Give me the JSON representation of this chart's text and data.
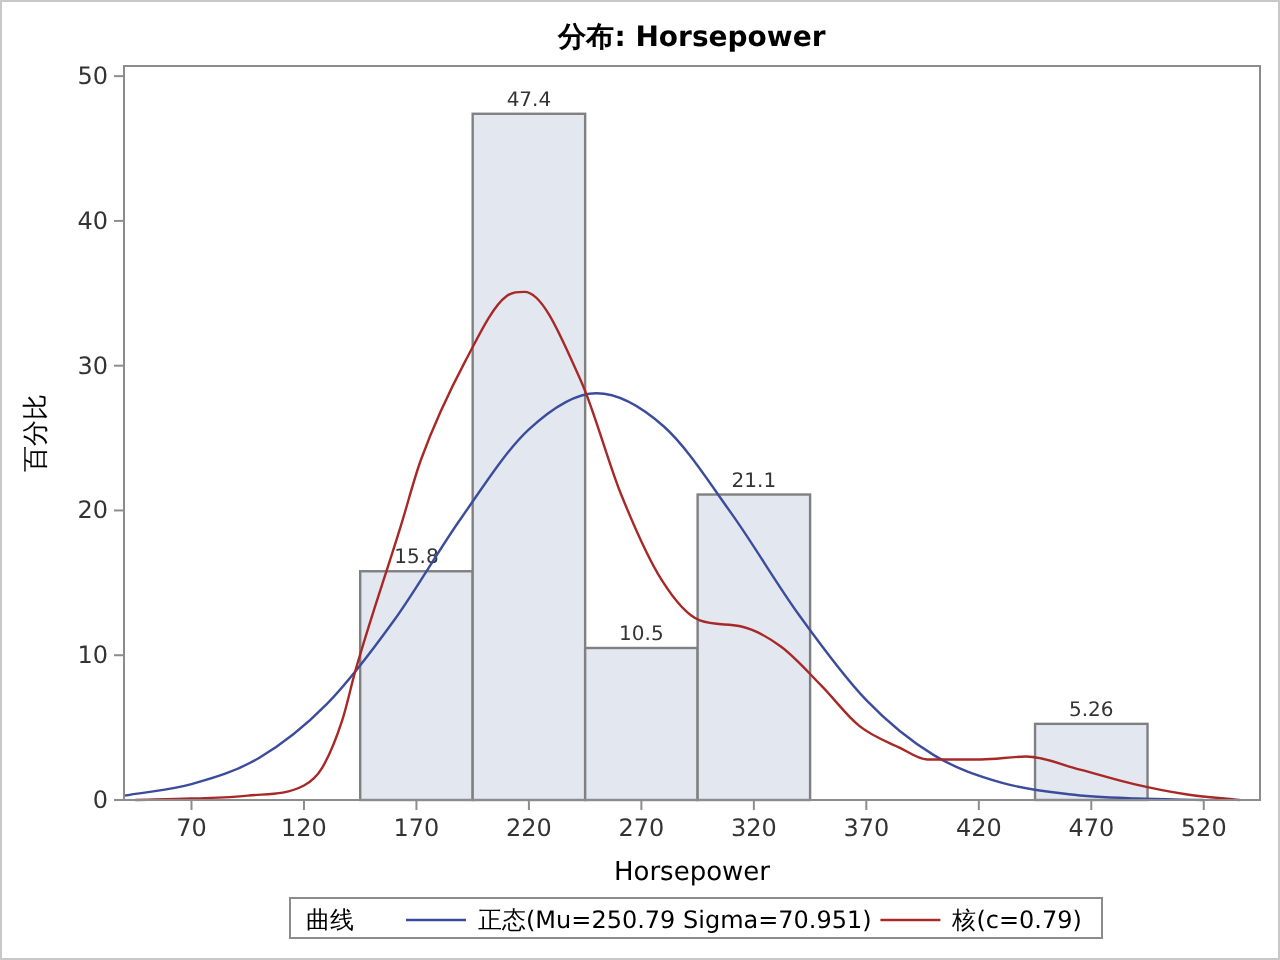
{
  "chart_data": {
    "type": "histogram",
    "title": "分布: Horsepower",
    "xlabel": "Horsepower",
    "ylabel": "百分比",
    "legend_title": "曲线",
    "legend": "bottom",
    "grid": false,
    "bins": [
      145,
      195,
      245,
      295,
      345,
      395,
      445,
      495
    ],
    "values": [
      15.8,
      47.4,
      10.5,
      21.1,
      0,
      0,
      5.26
    ],
    "value_labels": [
      "15.8",
      "47.4",
      "10.5",
      "21.1",
      null,
      null,
      "5.26"
    ],
    "color": "#e3e7f0",
    "xlim": [
      40,
      545
    ],
    "xticks": [
      70,
      120,
      170,
      220,
      270,
      320,
      370,
      420,
      470,
      520
    ],
    "ylim": [
      0,
      50.7
    ],
    "yticks": [
      0,
      10,
      20,
      30,
      40,
      50
    ],
    "series": [
      {
        "type": "line",
        "name": "正态(Mu=250.79 Sigma=70.951)",
        "color": "#3c4c9c",
        "x": [
          40,
          70,
          100,
          130,
          160,
          190,
          220,
          250,
          280,
          310,
          340,
          370,
          400,
          430,
          460,
          490,
          520
        ],
        "values": [
          0.3,
          1.1,
          2.9,
          6.6,
          12.4,
          19.5,
          25.6,
          28.1,
          25.8,
          19.8,
          12.8,
          6.9,
          3.1,
          1.2,
          0.4,
          0.1,
          0
        ]
      },
      {
        "type": "line",
        "name": "核(c=0.79)",
        "color": "#a82828",
        "x": [
          45,
          70,
          95,
          120,
          128,
          137,
          143,
          163,
          172,
          192,
          210,
          218,
          243,
          261,
          279,
          296,
          314,
          332,
          350,
          367,
          385,
          397,
          421,
          441,
          465,
          489,
          512,
          536
        ],
        "values": [
          0,
          0.1,
          0.3,
          1.0,
          2.2,
          5.5,
          9.0,
          18.9,
          23.5,
          30.4,
          34.8,
          35.1,
          29,
          21.1,
          15.2,
          12.4,
          12.0,
          10.6,
          7.9,
          5.1,
          3.6,
          2.8,
          2.8,
          3.0,
          2.1,
          1.1,
          0.4,
          0
        ]
      }
    ]
  }
}
